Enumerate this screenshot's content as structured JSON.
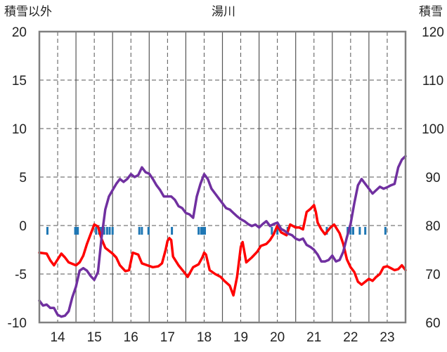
{
  "chart_data": {
    "type": "line",
    "title": "湯川",
    "left_axis_label": "積雪以外",
    "right_axis_label": "積雪",
    "left_ylim": [
      -10,
      20
    ],
    "left_ticks": [
      "20",
      "15",
      "10",
      "5",
      "0",
      "-5",
      "-10"
    ],
    "right_ylim": [
      60,
      120
    ],
    "right_ticks": [
      "120",
      "110",
      "100",
      "90",
      "80",
      "70",
      "60"
    ],
    "x_ticks": [
      "14",
      "15",
      "16",
      "17",
      "18",
      "19",
      "20",
      "21",
      "22",
      "23"
    ],
    "x_start": 13.5,
    "x_end": 23.5,
    "grid": true,
    "colors": {
      "red": "#ff0000",
      "purple": "#7030a0",
      "blue": "#1f77b4",
      "grid": "#555555",
      "frame": "#808080"
    },
    "series": [
      {
        "color": "#ff0000",
        "axis": "left",
        "points": [
          [
            13.5,
            -2.8
          ],
          [
            13.7,
            -2.9
          ],
          [
            13.8,
            -3.6
          ],
          [
            13.9,
            -4.1
          ],
          [
            14.0,
            -3.5
          ],
          [
            14.1,
            -2.9
          ],
          [
            14.2,
            -3.3
          ],
          [
            14.3,
            -3.8
          ],
          [
            14.5,
            -4.1
          ],
          [
            14.6,
            -3.8
          ],
          [
            14.7,
            -3.1
          ],
          [
            14.8,
            -1.9
          ],
          [
            14.9,
            -0.9
          ],
          [
            15.0,
            0.1
          ],
          [
            15.1,
            -0.1
          ],
          [
            15.2,
            -1.4
          ],
          [
            15.3,
            -2.3
          ],
          [
            15.5,
            -2.9
          ],
          [
            15.6,
            -3.3
          ],
          [
            15.7,
            -4.1
          ],
          [
            15.85,
            -4.7
          ],
          [
            15.95,
            -4.6
          ],
          [
            16.05,
            -2.8
          ],
          [
            16.2,
            -3.0
          ],
          [
            16.3,
            -3.9
          ],
          [
            16.45,
            -4.1
          ],
          [
            16.6,
            -4.3
          ],
          [
            16.75,
            -4.2
          ],
          [
            16.85,
            -3.9
          ],
          [
            16.95,
            -2.5
          ],
          [
            17.0,
            -1.6
          ],
          [
            17.05,
            -1.3
          ],
          [
            17.1,
            -1.5
          ],
          [
            17.15,
            -3.2
          ],
          [
            17.3,
            -4.1
          ],
          [
            17.45,
            -4.8
          ],
          [
            17.55,
            -5.3
          ],
          [
            17.7,
            -4.3
          ],
          [
            17.85,
            -4.0
          ],
          [
            17.95,
            -3.3
          ],
          [
            18.0,
            -2.8
          ],
          [
            18.05,
            -3.0
          ],
          [
            18.15,
            -4.6
          ],
          [
            18.3,
            -5.0
          ],
          [
            18.45,
            -5.3
          ],
          [
            18.55,
            -5.7
          ],
          [
            18.7,
            -6.2
          ],
          [
            18.8,
            -7.2
          ],
          [
            18.9,
            -5.3
          ],
          [
            19.0,
            -2.2
          ],
          [
            19.05,
            -1.7
          ],
          [
            19.15,
            -3.8
          ],
          [
            19.3,
            -3.3
          ],
          [
            19.45,
            -2.7
          ],
          [
            19.55,
            -2.1
          ],
          [
            19.7,
            -1.9
          ],
          [
            19.8,
            -1.5
          ],
          [
            19.9,
            -0.9
          ],
          [
            20.0,
            0.0
          ],
          [
            20.1,
            -0.7
          ],
          [
            20.25,
            -1.0
          ],
          [
            20.35,
            0.1
          ],
          [
            20.5,
            -0.2
          ],
          [
            20.6,
            -0.2
          ],
          [
            20.7,
            -0.4
          ],
          [
            20.8,
            1.4
          ],
          [
            20.9,
            1.7
          ],
          [
            21.0,
            2.1
          ],
          [
            21.05,
            1.4
          ],
          [
            21.1,
            0.3
          ],
          [
            21.2,
            -0.4
          ],
          [
            21.3,
            -0.9
          ],
          [
            21.45,
            -0.2
          ],
          [
            21.55,
            0.1
          ],
          [
            21.7,
            -0.8
          ],
          [
            21.8,
            -1.9
          ],
          [
            21.9,
            -3.5
          ],
          [
            22.0,
            -4.3
          ],
          [
            22.1,
            -4.8
          ],
          [
            22.2,
            -5.8
          ],
          [
            22.3,
            -6.1
          ],
          [
            22.4,
            -5.8
          ],
          [
            22.5,
            -5.5
          ],
          [
            22.6,
            -5.7
          ],
          [
            22.7,
            -5.3
          ],
          [
            22.8,
            -5.0
          ],
          [
            22.9,
            -4.3
          ],
          [
            23.0,
            -4.2
          ],
          [
            23.1,
            -4.4
          ],
          [
            23.2,
            -4.6
          ],
          [
            23.3,
            -4.5
          ],
          [
            23.4,
            -4.1
          ],
          [
            23.5,
            -4.6
          ]
        ]
      },
      {
        "color": "#7030a0",
        "axis": "right",
        "points": [
          [
            13.5,
            64.5
          ],
          [
            13.6,
            63.5
          ],
          [
            13.7,
            63.7
          ],
          [
            13.8,
            63.0
          ],
          [
            13.9,
            63.0
          ],
          [
            14.0,
            61.6
          ],
          [
            14.1,
            61.2
          ],
          [
            14.2,
            61.4
          ],
          [
            14.3,
            62.3
          ],
          [
            14.4,
            65.2
          ],
          [
            14.5,
            67.4
          ],
          [
            14.6,
            70.7
          ],
          [
            14.7,
            71.2
          ],
          [
            14.8,
            70.7
          ],
          [
            14.9,
            69.6
          ],
          [
            15.0,
            68.8
          ],
          [
            15.1,
            70.4
          ],
          [
            15.2,
            77.6
          ],
          [
            15.3,
            83.3
          ],
          [
            15.4,
            86.0
          ],
          [
            15.5,
            87.3
          ],
          [
            15.6,
            88.6
          ],
          [
            15.7,
            89.6
          ],
          [
            15.8,
            89.0
          ],
          [
            15.9,
            89.6
          ],
          [
            16.0,
            90.6
          ],
          [
            16.1,
            90.0
          ],
          [
            16.2,
            90.4
          ],
          [
            16.3,
            92.0
          ],
          [
            16.4,
            91.0
          ],
          [
            16.5,
            90.7
          ],
          [
            16.6,
            89.6
          ],
          [
            16.7,
            88.3
          ],
          [
            16.8,
            87.3
          ],
          [
            16.9,
            86.0
          ],
          [
            17.0,
            86.0
          ],
          [
            17.1,
            86.0
          ],
          [
            17.2,
            85.3
          ],
          [
            17.3,
            84.0
          ],
          [
            17.4,
            83.6
          ],
          [
            17.5,
            82.6
          ],
          [
            17.6,
            82.3
          ],
          [
            17.7,
            81.6
          ],
          [
            17.8,
            86.0
          ],
          [
            17.9,
            88.6
          ],
          [
            18.0,
            90.6
          ],
          [
            18.1,
            89.6
          ],
          [
            18.2,
            87.6
          ],
          [
            18.3,
            86.6
          ],
          [
            18.4,
            85.6
          ],
          [
            18.5,
            84.6
          ],
          [
            18.6,
            83.6
          ],
          [
            18.7,
            83.3
          ],
          [
            18.8,
            82.6
          ],
          [
            18.9,
            81.9
          ],
          [
            19.0,
            81.3
          ],
          [
            19.1,
            80.9
          ],
          [
            19.2,
            80.3
          ],
          [
            19.3,
            79.9
          ],
          [
            19.4,
            80.2
          ],
          [
            19.5,
            79.6
          ],
          [
            19.6,
            80.3
          ],
          [
            19.7,
            80.9
          ],
          [
            19.8,
            79.9
          ],
          [
            19.9,
            80.3
          ],
          [
            20.0,
            80.6
          ],
          [
            20.1,
            79.3
          ],
          [
            20.2,
            78.9
          ],
          [
            20.3,
            78.3
          ],
          [
            20.4,
            78.0
          ],
          [
            20.5,
            77.3
          ],
          [
            20.6,
            77.0
          ],
          [
            20.7,
            77.3
          ],
          [
            20.8,
            76.0
          ],
          [
            20.9,
            75.6
          ],
          [
            21.0,
            75.0
          ],
          [
            21.1,
            74.0
          ],
          [
            21.2,
            72.6
          ],
          [
            21.3,
            72.6
          ],
          [
            21.4,
            72.9
          ],
          [
            21.5,
            73.8
          ],
          [
            21.6,
            72.6
          ],
          [
            21.7,
            72.9
          ],
          [
            21.8,
            74.6
          ],
          [
            21.9,
            77.6
          ],
          [
            22.0,
            80.3
          ],
          [
            22.1,
            84.6
          ],
          [
            22.2,
            88.3
          ],
          [
            22.3,
            89.6
          ],
          [
            22.4,
            88.6
          ],
          [
            22.5,
            87.6
          ],
          [
            22.6,
            86.6
          ],
          [
            22.7,
            87.3
          ],
          [
            22.8,
            88.0
          ],
          [
            22.9,
            87.6
          ],
          [
            23.0,
            87.9
          ],
          [
            23.1,
            88.3
          ],
          [
            23.2,
            88.6
          ],
          [
            23.3,
            92.0
          ],
          [
            23.4,
            93.6
          ],
          [
            23.5,
            94.3
          ]
        ]
      }
    ],
    "blue_ticks": [
      13.72,
      14.48,
      14.52,
      14.55,
      15.05,
      15.13,
      15.17,
      15.22,
      15.27,
      15.35,
      15.42,
      15.5,
      16.23,
      16.3,
      16.48,
      17.12,
      17.85,
      17.92,
      17.97,
      18.02,
      19.85,
      20.0,
      20.28,
      21.35,
      21.92,
      22.0,
      22.07,
      22.25,
      22.4,
      22.95
    ]
  }
}
